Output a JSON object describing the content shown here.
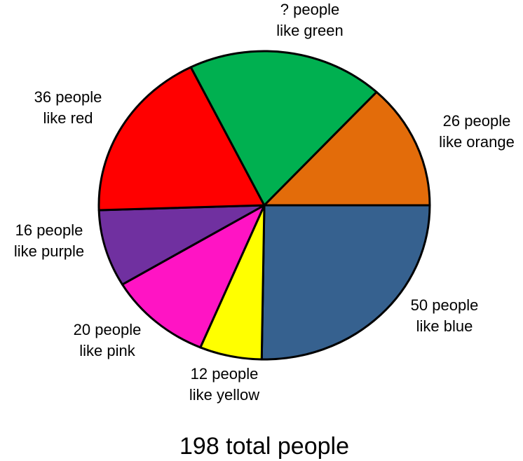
{
  "chart_data": {
    "type": "pie",
    "title": "",
    "total_label": "198 total people",
    "slices": [
      {
        "name": "blue",
        "value": 50,
        "color": "#36618F",
        "label_lines": [
          "50 people",
          "like blue"
        ]
      },
      {
        "name": "yellow",
        "value": 12,
        "color": "#FFFF00",
        "label_lines": [
          "12 people",
          "like yellow"
        ]
      },
      {
        "name": "pink",
        "value": 20,
        "color": "#FF14C4",
        "label_lines": [
          "20 people",
          "like pink"
        ]
      },
      {
        "name": "purple",
        "value": 16,
        "color": "#7030A0",
        "label_lines": [
          "16 people",
          "like purple"
        ]
      },
      {
        "name": "red",
        "value": 36,
        "color": "#FF0000",
        "label_lines": [
          "36 people",
          "like red"
        ]
      },
      {
        "name": "green",
        "value": 38,
        "color": "#00B050",
        "label_lines": [
          "? people",
          "like green"
        ]
      },
      {
        "name": "orange",
        "value": 26,
        "color": "#E36C0A",
        "label_lines": [
          "26 people",
          "like orange"
        ]
      }
    ]
  }
}
